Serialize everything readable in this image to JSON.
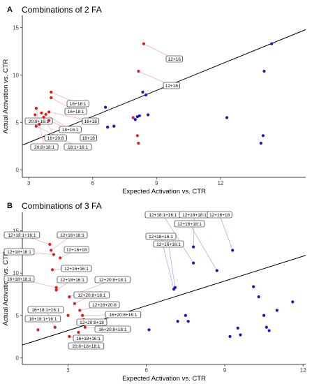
{
  "chart_data": [
    {
      "type": "scatter",
      "panel": "A",
      "title": "Combinations of 2 FA",
      "xlabel": "Expected Activation vs. CTR",
      "ylabel": "Actual Activation vs. CTR",
      "xlim": [
        2.7,
        16.0
      ],
      "ylim": [
        -0.8,
        16.3
      ],
      "xticks": [
        3,
        6,
        9,
        12
      ],
      "yticks": [
        0,
        5,
        10,
        15
      ],
      "grid": false,
      "regression_line": {
        "x": [
          2.7,
          16.0
        ],
        "y": [
          2.6,
          14.8
        ]
      },
      "colors": {
        "labeled": "#e31a1c",
        "unlabeled": "#1515c8",
        "line": "#000000",
        "connector": "#f4a6a6"
      },
      "labeled_points": [
        {
          "x": 8.4,
          "y": 13.3,
          "label": "12+16"
        },
        {
          "x": 8.15,
          "y": 10.4,
          "label": "12+18"
        },
        {
          "x": 4.05,
          "y": 8.2,
          "label": "16+18:1"
        },
        {
          "x": 4.05,
          "y": 7.6,
          "label": "16+18:1"
        },
        {
          "x": 3.35,
          "y": 6.5,
          "label": "20:8+16:1"
        },
        {
          "x": 3.95,
          "y": 6.1,
          "label": "16+18"
        },
        {
          "x": 3.8,
          "y": 5.85,
          "label": "18+16:1"
        },
        {
          "x": 3.7,
          "y": 5.55,
          "label": "16+20:8"
        },
        {
          "x": 3.95,
          "y": 5.2,
          "label": "18+18"
        },
        {
          "x": 3.5,
          "y": 4.8,
          "label": "20:8+18:1"
        },
        {
          "x": 3.35,
          "y": 4.6,
          "label": "18:1+16:1"
        }
      ],
      "unlabeled_points": [
        {
          "x": 6.6,
          "y": 6.6
        },
        {
          "x": 6.7,
          "y": 4.5
        },
        {
          "x": 7.0,
          "y": 4.6
        },
        {
          "x": 8.0,
          "y": 5.3
        },
        {
          "x": 8.1,
          "y": 5.6
        },
        {
          "x": 8.2,
          "y": 5.7
        },
        {
          "x": 8.35,
          "y": 8.2
        },
        {
          "x": 8.5,
          "y": 7.9
        },
        {
          "x": 8.6,
          "y": 5.8
        },
        {
          "x": 12.3,
          "y": 5.5
        },
        {
          "x": 13.9,
          "y": 2.8
        },
        {
          "x": 14.0,
          "y": 3.6
        },
        {
          "x": 14.05,
          "y": 10.4
        },
        {
          "x": 14.4,
          "y": 13.3
        }
      ],
      "extra_red_points": [
        {
          "x": 3.3,
          "y": 5.8
        },
        {
          "x": 3.6,
          "y": 6.0
        },
        {
          "x": 7.9,
          "y": 5.5
        },
        {
          "x": 8.1,
          "y": 3.6
        },
        {
          "x": 8.15,
          "y": 2.8
        }
      ]
    },
    {
      "type": "scatter",
      "panel": "B",
      "title": "Combinations of 3 FA",
      "xlabel": "Expected Activation vs. CTR",
      "ylabel": "Actual Activation vs. CTR",
      "xlim": [
        1.25,
        12.1
      ],
      "ylim": [
        -0.8,
        17.2
      ],
      "xticks": [
        3,
        6,
        9,
        12
      ],
      "yticks": [
        0,
        5,
        10,
        15
      ],
      "grid": false,
      "regression_line": {
        "x": [
          1.25,
          12.1
        ],
        "y": [
          1.5,
          12.1
        ]
      },
      "colors": {
        "labeled_left": "#e31a1c",
        "labeled_right": "#1515c8",
        "unlabeled": "#1515c8",
        "line": "#000000",
        "connector_left": "#f4a6a6",
        "connector_right": "#9aa6e8"
      },
      "labeled_points": [
        {
          "x": 7.8,
          "y": 11.2,
          "label": "12+18:1+16:1"
        },
        {
          "x": 7.05,
          "y": 8.1,
          "label": "12+18+16:1"
        },
        {
          "x": 7.1,
          "y": 8.3,
          "label": "12+16+16:1"
        },
        {
          "x": 7.8,
          "y": 13.1,
          "label": "12+18+18:1"
        },
        {
          "x": 8.7,
          "y": 10.3,
          "label": "12+16+18:1"
        },
        {
          "x": 9.3,
          "y": 12.7,
          "label": "12+16+18"
        },
        {
          "x": 2.3,
          "y": 13.4,
          "label": "12+18:1+16:1"
        },
        {
          "x": 2.35,
          "y": 12.7,
          "label": "12+16+18:1"
        },
        {
          "x": 2.45,
          "y": 12.2,
          "label": "12+18+18:1"
        },
        {
          "x": 2.7,
          "y": 11.8,
          "label": "12+16+18"
        },
        {
          "x": 2.4,
          "y": 10.4,
          "label": "12+16+16:1"
        },
        {
          "x": 2.55,
          "y": 8.3,
          "label": "16+18+18:1"
        },
        {
          "x": 2.55,
          "y": 8.0,
          "label": "12+18+16:1"
        },
        {
          "x": 3.05,
          "y": 7.2,
          "label": "12+20:8+18:1"
        },
        {
          "x": 3.25,
          "y": 6.4,
          "label": "12+20:8+16:1"
        },
        {
          "x": 3.45,
          "y": 5.6,
          "label": "12+16+20:8"
        },
        {
          "x": 3.55,
          "y": 5.0,
          "label": "16+20:8+16:1"
        },
        {
          "x": 3.6,
          "y": 4.5,
          "label": "12+20:8+18"
        },
        {
          "x": 3.65,
          "y": 3.6,
          "label": "16+20:8+18:1"
        },
        {
          "x": 2.5,
          "y": 3.6,
          "label": "16+18:1+16:1"
        },
        {
          "x": 3.05,
          "y": 2.5,
          "label": "16+18+16:1"
        },
        {
          "x": 2.3,
          "y": 4.8,
          "label": "18+18:1+16:1"
        },
        {
          "x": 3.4,
          "y": 3.0,
          "label": "20:8+18+18:1"
        }
      ],
      "unlabeled_points": [
        {
          "x": 6.1,
          "y": 3.3
        },
        {
          "x": 7.2,
          "y": 4.3
        },
        {
          "x": 7.5,
          "y": 5.0
        },
        {
          "x": 7.6,
          "y": 4.3
        },
        {
          "x": 9.2,
          "y": 2.5
        },
        {
          "x": 9.5,
          "y": 3.5
        },
        {
          "x": 9.6,
          "y": 2.7
        },
        {
          "x": 10.1,
          "y": 8.4
        },
        {
          "x": 10.3,
          "y": 7.2
        },
        {
          "x": 10.5,
          "y": 5.0
        },
        {
          "x": 10.6,
          "y": 3.6
        },
        {
          "x": 10.7,
          "y": 3.2
        },
        {
          "x": 11.0,
          "y": 5.6
        },
        {
          "x": 11.6,
          "y": 6.6
        }
      ],
      "extra_red_points": [
        {
          "x": 2.2,
          "y": 4.4
        },
        {
          "x": 2.35,
          "y": 4.5
        },
        {
          "x": 1.85,
          "y": 3.3
        },
        {
          "x": 3.0,
          "y": 5.0
        }
      ]
    }
  ]
}
